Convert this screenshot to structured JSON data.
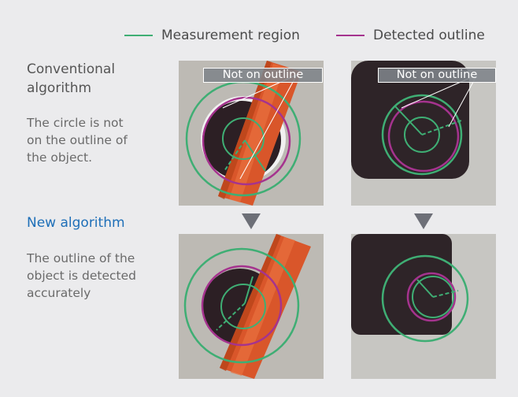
{
  "legend": {
    "measurement_region": {
      "label": "Measurement region",
      "color": "#3fae74"
    },
    "detected_outline": {
      "label": "Detected outline",
      "color": "#a5338e"
    }
  },
  "rows": {
    "conventional": {
      "title": "Conventional algorithm",
      "description": "The circle is not on the outline of the object."
    },
    "new": {
      "title": "New algorithm",
      "title_color": "#1e6fb8",
      "description": "The outline of the object is detected accurately"
    }
  },
  "callouts": {
    "not_on_outline": "Not on outline"
  },
  "icons": {
    "arrow": "down-triangle-icon"
  }
}
